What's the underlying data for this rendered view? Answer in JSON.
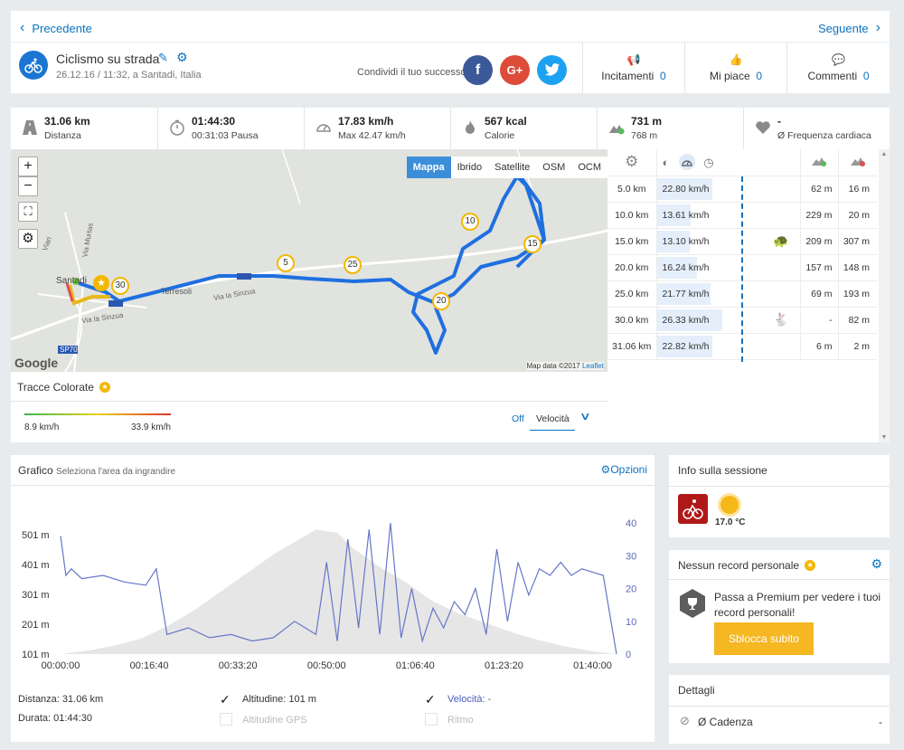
{
  "nav": {
    "prev_label": "Precedente",
    "next_label": "Seguente"
  },
  "header": {
    "title": "Ciclismo su strada",
    "subtitle": "26.12.16 / 11:32, a Santadi, Italia",
    "share_label": "Condividi il tuo successo",
    "cheers": {
      "label": "Incitamenti",
      "count": "0"
    },
    "likes": {
      "label": "Mi piace",
      "count": "0"
    },
    "comments": {
      "label": "Commenti",
      "count": "0"
    }
  },
  "stats": [
    {
      "icon": "road-icon",
      "value": "31.06 km",
      "label": "Distanza"
    },
    {
      "icon": "stopwatch-icon",
      "value": "01:44:30",
      "label": "00:31:03 Pausa"
    },
    {
      "icon": "speedometer-icon",
      "value": "17.83 km/h",
      "label": "Max 42.47 km/h"
    },
    {
      "icon": "flame-icon",
      "value": "567 kcal",
      "label": "Calorie"
    },
    {
      "icon": "elevation-up-icon",
      "value": "731 m",
      "label": "768 m"
    },
    {
      "icon": "heart-icon",
      "value": "-",
      "label": "Ø Frequenza cardiaca"
    }
  ],
  "map": {
    "tabs": [
      "Mappa",
      "Ibrido",
      "Satellite",
      "OSM",
      "OCM"
    ],
    "active_tab": "Mappa",
    "labels": {
      "town": "Santadi",
      "place": "Terresoli",
      "road1": "Via Murtas",
      "road2": "Via la Sinzua",
      "road3": "Via la Sinzua",
      "sp": "SP70",
      "viari": "Viari"
    },
    "km_markers": [
      "5",
      "10",
      "15",
      "20",
      "25",
      "30"
    ],
    "attribution_data": "Map data ©2017",
    "attribution_link": "Leaflet",
    "google": "Google"
  },
  "tracce": {
    "title": "Tracce Colorate",
    "min": "8.9 km/h",
    "max": "33.9 km/h",
    "off": "Off",
    "mode": "Velocità"
  },
  "splits": [
    {
      "km": "5.0 km",
      "speed": "22.80 km/h",
      "frac": 0.53,
      "icon": "",
      "up": "62 m",
      "down": "16 m"
    },
    {
      "km": "10.0 km",
      "speed": "13.61 km/h",
      "frac": 0.32,
      "icon": "",
      "up": "229 m",
      "down": "20 m"
    },
    {
      "km": "15.0 km",
      "speed": "13.10 km/h",
      "frac": 0.31,
      "icon": "turtle-icon",
      "up": "209 m",
      "down": "307 m"
    },
    {
      "km": "20.0 km",
      "speed": "16.24 km/h",
      "frac": 0.38,
      "icon": "",
      "up": "157 m",
      "down": "148 m"
    },
    {
      "km": "25.0 km",
      "speed": "21.77 km/h",
      "frac": 0.51,
      "icon": "",
      "up": "69 m",
      "down": "193 m"
    },
    {
      "km": "30.0 km",
      "speed": "26.33 km/h",
      "frac": 0.62,
      "icon": "rabbit-icon",
      "up": "-",
      "down": "82 m"
    },
    {
      "km": "31.06 km",
      "speed": "22.82 km/h",
      "frac": 0.53,
      "icon": "",
      "up": "6 m",
      "down": "2 m"
    }
  ],
  "graph": {
    "title": "Grafico",
    "hint": "Seleziona l'area da ingrandire",
    "options": "Opzioni",
    "distance": "Distanza: 31.06 km",
    "duration": "Durata: 01:44:30",
    "altitude": "Altitudine: 101 m",
    "altitude_gps": "Altitudine GPS",
    "speed": "Velocità:",
    "speed_val": "-",
    "pace": "Ritmo"
  },
  "chart_data": {
    "type": "line",
    "x_ticks": [
      "00:00:00",
      "00:16:40",
      "00:33:20",
      "00:50:00",
      "01:06:40",
      "01:23:20",
      "01:40:00"
    ],
    "y_left_ticks": [
      "501 m",
      "401 m",
      "301 m",
      "201 m",
      "101 m"
    ],
    "y_right_ticks": [
      "40",
      "30",
      "20",
      "10",
      "0"
    ],
    "series": [
      {
        "name": "Altitudine",
        "type": "area",
        "color": "#e6e6e6",
        "unit": "m",
        "x_min": [
          0,
          5,
          10,
          15,
          20,
          25,
          30,
          35,
          40,
          45,
          48,
          52,
          55,
          60,
          65,
          70,
          75,
          80,
          85,
          90,
          95,
          100,
          104.5
        ],
        "values": [
          101,
          112,
          128,
          150,
          190,
          240,
          300,
          360,
          420,
          470,
          500,
          490,
          440,
          380,
          330,
          270,
          230,
          200,
          170,
          145,
          125,
          110,
          101
        ]
      },
      {
        "name": "Velocità",
        "type": "line",
        "color": "#6676c8",
        "unit": "km/h",
        "x_min": [
          0,
          1,
          2,
          4,
          8,
          12,
          16,
          18,
          20,
          24,
          28,
          32,
          36,
          40,
          44,
          48,
          50,
          52,
          54,
          56,
          58,
          60,
          62,
          64,
          66,
          68,
          70,
          72,
          74,
          76,
          78,
          80,
          82,
          84,
          86,
          88,
          90,
          92,
          94,
          96,
          98,
          100,
          102,
          104.5
        ],
        "values": [
          36,
          24,
          26,
          23,
          24,
          22,
          21,
          26,
          6,
          8,
          5,
          6,
          4,
          5,
          10,
          6,
          28,
          4,
          35,
          8,
          38,
          6,
          40,
          5,
          20,
          4,
          14,
          8,
          16,
          12,
          20,
          6,
          32,
          10,
          28,
          18,
          26,
          24,
          28,
          24,
          26,
          25,
          24,
          0
        ]
      }
    ]
  },
  "info": {
    "title": "Info sulla sessione",
    "temp": "17.0 °C"
  },
  "record": {
    "title": "Nessun record personale",
    "text": "Passa a Premium per vedere i tuoi record personali!",
    "button": "Sblocca subito"
  },
  "details": {
    "title": "Dettagli",
    "cadence_label": "Ø Cadenza",
    "cadence_value": "-"
  }
}
